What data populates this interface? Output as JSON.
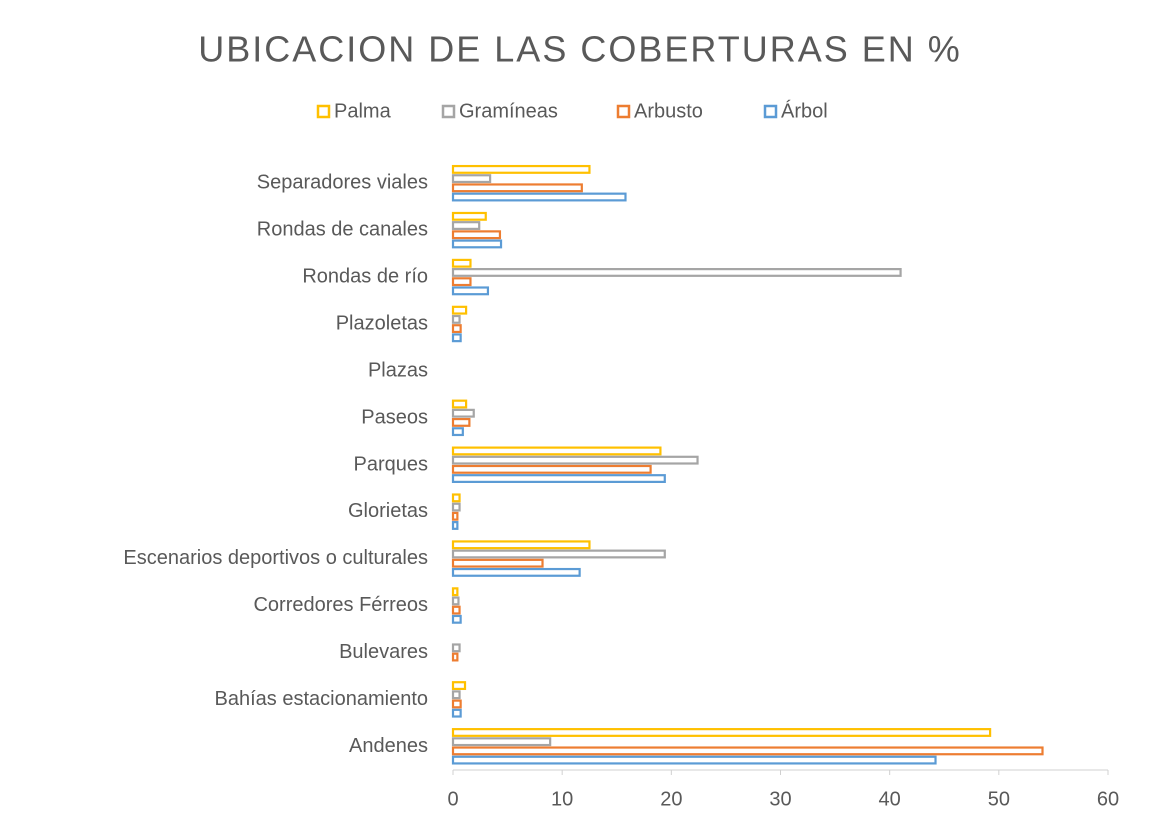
{
  "chart_data": {
    "type": "hbar",
    "title": "UBICACION DE LAS COBERTURAS EN %",
    "categories": [
      "Separadores viales",
      "Rondas de canales",
      "Rondas de río",
      "Plazoletas",
      "Plazas",
      "Paseos",
      "Parques",
      "Glorietas",
      "Escenarios deportivos o culturales",
      "Corredores Férreos",
      "Bulevares",
      "Bahías estacionamiento",
      "Andenes"
    ],
    "series": [
      {
        "name": "Palma",
        "color": "#ffc000",
        "values": [
          12.5,
          3.0,
          1.6,
          1.2,
          0,
          1.2,
          19.0,
          0.6,
          12.5,
          0.4,
          0,
          1.1,
          49.2
        ]
      },
      {
        "name": "Gramíneas",
        "color": "#a5a5a5",
        "values": [
          3.4,
          2.4,
          41.0,
          0.6,
          0,
          1.9,
          22.4,
          0.6,
          19.4,
          0.5,
          0.6,
          0.6,
          8.9
        ]
      },
      {
        "name": "Arbusto",
        "color": "#ed7d31",
        "values": [
          11.8,
          4.3,
          1.6,
          0.7,
          0,
          1.5,
          18.1,
          0.4,
          8.2,
          0.6,
          0.4,
          0.7,
          54.0
        ]
      },
      {
        "name": "Árbol",
        "color": "#5b9bd5",
        "values": [
          15.8,
          4.4,
          3.2,
          0.7,
          0,
          0.9,
          19.4,
          0.4,
          11.6,
          0.7,
          0,
          0.7,
          44.2
        ]
      }
    ],
    "xlim": [
      0,
      60
    ],
    "xticks": [
      0,
      10,
      20,
      30,
      40,
      50,
      60
    ],
    "grid": false,
    "legend": "top"
  }
}
